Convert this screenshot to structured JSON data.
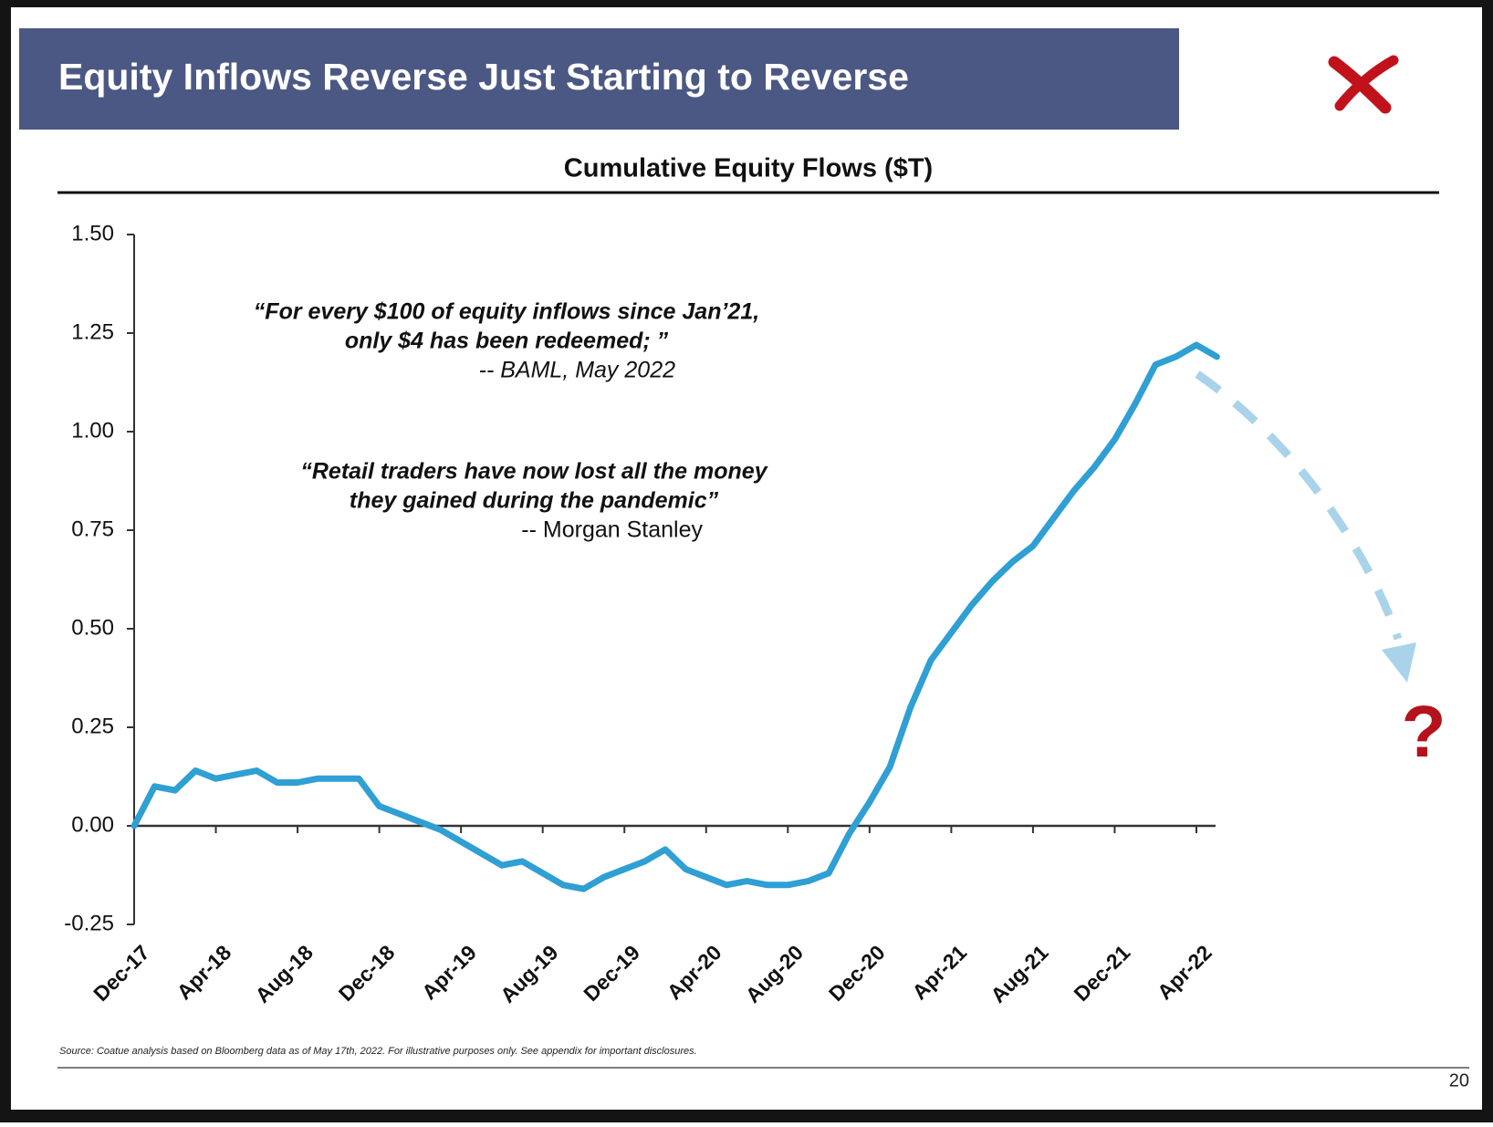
{
  "header": {
    "title": "Equity Inflows Reverse Just Starting to Reverse"
  },
  "chart_data": {
    "type": "line",
    "title": "Cumulative Equity Flows ($T)",
    "categories": [
      "Dec-17",
      null,
      null,
      null,
      "Apr-18",
      null,
      null,
      null,
      "Aug-18",
      null,
      null,
      null,
      "Dec-18",
      null,
      null,
      null,
      "Apr-19",
      null,
      null,
      null,
      "Aug-19",
      null,
      null,
      null,
      "Dec-19",
      null,
      null,
      null,
      "Apr-20",
      null,
      null,
      null,
      "Aug-20",
      null,
      null,
      null,
      "Dec-20",
      null,
      null,
      null,
      "Apr-21",
      null,
      null,
      null,
      "Aug-21",
      null,
      null,
      null,
      "Dec-21",
      null,
      null,
      null,
      "Apr-22",
      null
    ],
    "series": [
      {
        "name": "Cumulative Equity Flows",
        "color": "#2f9fd4",
        "values": [
          0.0,
          0.1,
          0.09,
          0.14,
          0.12,
          0.13,
          0.14,
          0.11,
          0.11,
          0.12,
          0.12,
          0.12,
          0.05,
          0.03,
          0.01,
          -0.01,
          -0.04,
          -0.07,
          -0.1,
          -0.09,
          -0.12,
          -0.15,
          -0.16,
          -0.13,
          -0.11,
          -0.09,
          -0.06,
          -0.11,
          -0.13,
          -0.15,
          -0.14,
          -0.15,
          -0.15,
          -0.14,
          -0.12,
          -0.02,
          0.06,
          0.15,
          0.3,
          0.42,
          0.49,
          0.56,
          0.62,
          0.67,
          0.71,
          0.78,
          0.85,
          0.91,
          0.98,
          1.07,
          1.17,
          1.19,
          1.22,
          1.19
        ]
      }
    ],
    "ylim": [
      -0.25,
      1.5
    ],
    "yticks": [
      {
        "value": -0.25,
        "label": "-0.25"
      },
      {
        "value": 0,
        "label": "0.00"
      },
      {
        "value": 0.25,
        "label": "0.25"
      },
      {
        "value": 0.5,
        "label": "0.50"
      },
      {
        "value": 0.75,
        "label": "0.75"
      },
      {
        "value": 1,
        "label": "1.00"
      },
      {
        "value": 1.25,
        "label": "1.25"
      },
      {
        "value": 1.5,
        "label": "1.50"
      }
    ],
    "grid": false,
    "annotations": [
      {
        "lines": [
          "“For every $100 of equity inflows since Jan’21,",
          "only $4 has been redeemed; ”"
        ],
        "attribution": "-- BAML, May 2022"
      },
      {
        "lines": [
          "“Retail traders have now lost all the money",
          "they gained during the pandemic”"
        ],
        "attribution": "-- Morgan Stanley"
      }
    ],
    "outlook_mark": "?"
  },
  "footer": {
    "source": "Source: Coatue analysis based on Bloomberg data as of May 17th, 2022. For illustrative purposes only. See appendix for important disclosures.",
    "page_number": "20"
  }
}
